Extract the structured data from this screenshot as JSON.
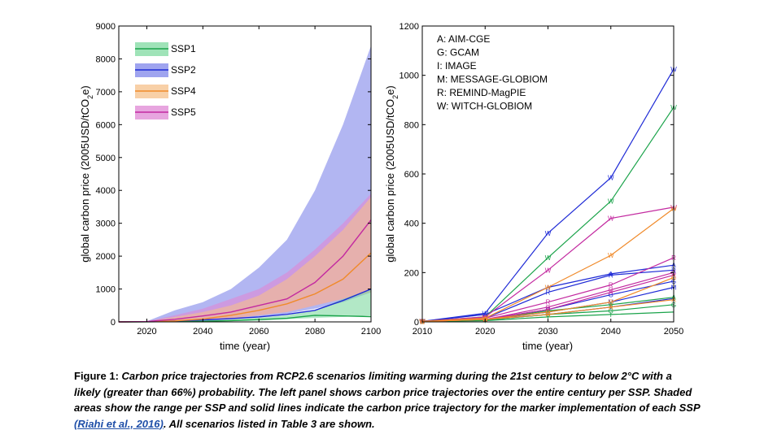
{
  "chart_data": [
    {
      "type": "area",
      "xlabel": "time (year)",
      "ylabel": "global carbon price (2005USD/tCO2e)",
      "xlim": [
        2010,
        2100
      ],
      "ylim": [
        0,
        9000
      ],
      "xticks": [
        2020,
        2040,
        2060,
        2080,
        2100
      ],
      "yticks": [
        0,
        1000,
        2000,
        3000,
        4000,
        5000,
        6000,
        7000,
        8000,
        9000
      ],
      "legend_position": "top-left",
      "x": [
        2010,
        2020,
        2030,
        2040,
        2050,
        2060,
        2070,
        2080,
        2090,
        2100
      ],
      "series": [
        {
          "name": "SSP1",
          "color": "#1aa34a",
          "fill": "#7fd9a0",
          "low": [
            0,
            0,
            5,
            10,
            20,
            40,
            80,
            120,
            150,
            200
          ],
          "high": [
            0,
            5,
            20,
            40,
            70,
            130,
            200,
            350,
            700,
            1000
          ],
          "marker": [
            0,
            2,
            10,
            20,
            40,
            70,
            110,
            200,
            180,
            160
          ]
        },
        {
          "name": "SSP2",
          "color": "#1f2bd6",
          "fill": "#7f86ea",
          "low": [
            0,
            0,
            20,
            50,
            100,
            150,
            250,
            400,
            600,
            900
          ],
          "high": [
            0,
            20,
            350,
            600,
            1000,
            1650,
            2500,
            4000,
            6000,
            8400
          ],
          "marker": [
            0,
            5,
            30,
            60,
            100,
            150,
            230,
            350,
            650,
            1000
          ]
        },
        {
          "name": "SSP4",
          "color": "#f08a2a",
          "fill": "#f6c08a",
          "low": [
            0,
            0,
            20,
            50,
            100,
            200,
            300,
            500,
            700,
            900
          ],
          "high": [
            0,
            10,
            150,
            300,
            500,
            800,
            1300,
            2000,
            2800,
            3800
          ],
          "marker": [
            0,
            5,
            30,
            90,
            200,
            350,
            550,
            850,
            1300,
            2100
          ]
        },
        {
          "name": "SSP5",
          "color": "#c32aa0",
          "fill": "#df87d4",
          "low": [
            0,
            0,
            20,
            50,
            100,
            200,
            300,
            500,
            700,
            900
          ],
          "high": [
            0,
            20,
            200,
            400,
            700,
            1000,
            1500,
            2200,
            3000,
            3900
          ],
          "marker": [
            0,
            10,
            80,
            180,
            300,
            500,
            700,
            1200,
            2000,
            3100
          ]
        }
      ]
    },
    {
      "type": "line",
      "xlabel": "time (year)",
      "ylabel": "global carbon price (2005USD/tCO2e)",
      "xlim": [
        2010,
        2050
      ],
      "ylim": [
        0,
        1200
      ],
      "xticks": [
        2010,
        2020,
        2030,
        2040,
        2050
      ],
      "yticks": [
        0,
        200,
        400,
        600,
        800,
        1000,
        1200
      ],
      "legend_position": "top-left",
      "model_legend": [
        "A: AIM-CGE",
        "G: GCAM",
        "I: IMAGE",
        "M: MESSAGE-GLOBIOM",
        "R: REMIND-MagPIE",
        "W: WITCH-GLOBIOM"
      ],
      "x": [
        2010,
        2020,
        2030,
        2040,
        2050
      ],
      "series": [
        {
          "ssp": "SSP2",
          "color": "#1f2bd6",
          "marker": "W",
          "values": [
            2,
            35,
            360,
            585,
            1025
          ]
        },
        {
          "ssp": "SSP2",
          "color": "#1f2bd6",
          "marker": "A",
          "values": [
            2,
            30,
            140,
            195,
            230
          ]
        },
        {
          "ssp": "SSP2",
          "color": "#1f2bd6",
          "marker": "R",
          "values": [
            2,
            15,
            120,
            190,
            210
          ]
        },
        {
          "ssp": "SSP2",
          "color": "#1f2bd6",
          "marker": "G",
          "values": [
            2,
            10,
            50,
            110,
            165
          ]
        },
        {
          "ssp": "SSP2",
          "color": "#1f2bd6",
          "marker": "M",
          "values": [
            2,
            8,
            40,
            80,
            140
          ]
        },
        {
          "ssp": "SSP2",
          "color": "#1f2bd6",
          "marker": "I",
          "values": [
            2,
            8,
            30,
            60,
            95
          ]
        },
        {
          "ssp": "SSP1",
          "color": "#1aa34a",
          "marker": "W",
          "values": [
            2,
            20,
            260,
            490,
            870
          ]
        },
        {
          "ssp": "SSP1",
          "color": "#1aa34a",
          "marker": "A",
          "values": [
            2,
            10,
            45,
            70,
            100
          ]
        },
        {
          "ssp": "SSP1",
          "color": "#1aa34a",
          "marker": "G",
          "values": [
            2,
            8,
            30,
            45,
            70
          ]
        },
        {
          "ssp": "SSP1",
          "color": "#1aa34a",
          "marker": "I",
          "values": [
            2,
            5,
            20,
            30,
            40
          ]
        },
        {
          "ssp": "SSP5",
          "color": "#c32aa0",
          "marker": "W",
          "values": [
            2,
            20,
            210,
            420,
            465
          ]
        },
        {
          "ssp": "SSP5",
          "color": "#c32aa0",
          "marker": "R",
          "values": [
            2,
            15,
            80,
            150,
            260
          ]
        },
        {
          "ssp": "SSP5",
          "color": "#c32aa0",
          "marker": "G",
          "values": [
            2,
            10,
            60,
            130,
            200
          ]
        },
        {
          "ssp": "SSP5",
          "color": "#c32aa0",
          "marker": "A",
          "values": [
            2,
            10,
            50,
            120,
            190
          ]
        },
        {
          "ssp": "SSP4",
          "color": "#f08a2a",
          "marker": "W",
          "values": [
            2,
            15,
            140,
            270,
            460
          ]
        },
        {
          "ssp": "SSP4",
          "color": "#f08a2a",
          "marker": "G",
          "values": [
            2,
            10,
            40,
            80,
            180
          ]
        },
        {
          "ssp": "SSP4",
          "color": "#f08a2a",
          "marker": "A",
          "values": [
            2,
            10,
            30,
            60,
            90
          ]
        }
      ]
    }
  ],
  "caption": {
    "figure_label": "Figure 1",
    "text_before_ref": "Carbon price trajectories from RCP2.6 scenarios limiting warming during the 21st century to below 2°C with a likely (greater than 66%) probability. The left panel shows carbon price trajectories over the entire century per SSP. Shaded areas show the range per SSP and solid lines indicate the carbon price trajectory for the marker implementation of each SSP",
    "reference": "(Riahi et al., 2016)",
    "text_after_ref": ". All scenarios listed in Table 3 are shown."
  }
}
